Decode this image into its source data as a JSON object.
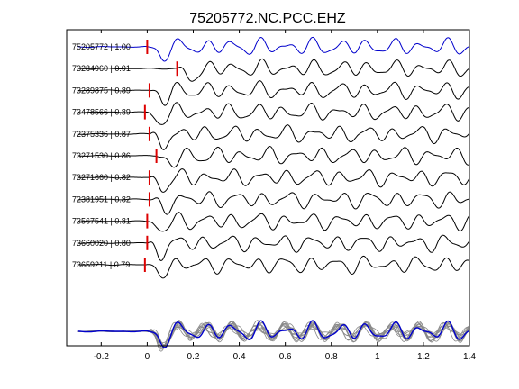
{
  "chart_data": {
    "type": "line",
    "title": "75205772.NC.PCC.EHZ",
    "xlim": [
      -0.35,
      1.4
    ],
    "x_ticks": [
      "-0.2",
      "0",
      "0.2",
      "0.4",
      "0.6",
      "0.8",
      "1",
      "1.2",
      "1.4"
    ],
    "x_tick_values": [
      -0.2,
      0,
      0.2,
      0.4,
      0.6,
      0.8,
      1.0,
      1.2,
      1.4
    ],
    "xlabel": "",
    "ylabel": "",
    "grid": false,
    "colors": {
      "reference": "#0000cc",
      "trace": "#000000",
      "pick": "#dd0000",
      "stack_member": "#888888"
    },
    "traces": [
      {
        "label": "75205772 | 1.00",
        "pick_time": 0.0,
        "reference": true
      },
      {
        "label": "73284960 | 0.91",
        "pick_time": 0.13,
        "reference": false
      },
      {
        "label": "73289875 | 0.89",
        "pick_time": 0.01,
        "reference": false
      },
      {
        "label": "73478566 | 0.89",
        "pick_time": -0.01,
        "reference": false
      },
      {
        "label": "72375336 | 0.87",
        "pick_time": 0.01,
        "reference": false
      },
      {
        "label": "73271530 | 0.86",
        "pick_time": 0.04,
        "reference": false
      },
      {
        "label": "73271660 | 0.82",
        "pick_time": 0.01,
        "reference": false
      },
      {
        "label": "72381951 | 0.82",
        "pick_time": 0.01,
        "reference": false
      },
      {
        "label": "73567541 | 0.81",
        "pick_time": 0.0,
        "reference": false
      },
      {
        "label": "73660020 | 0.80",
        "pick_time": 0.0,
        "reference": false
      },
      {
        "label": "73659211 | 0.79",
        "pick_time": -0.01,
        "reference": false
      }
    ],
    "stack_panel": {
      "overlay_count": 11,
      "reference_color": "#0000cc",
      "member_color": "#888888"
    }
  }
}
